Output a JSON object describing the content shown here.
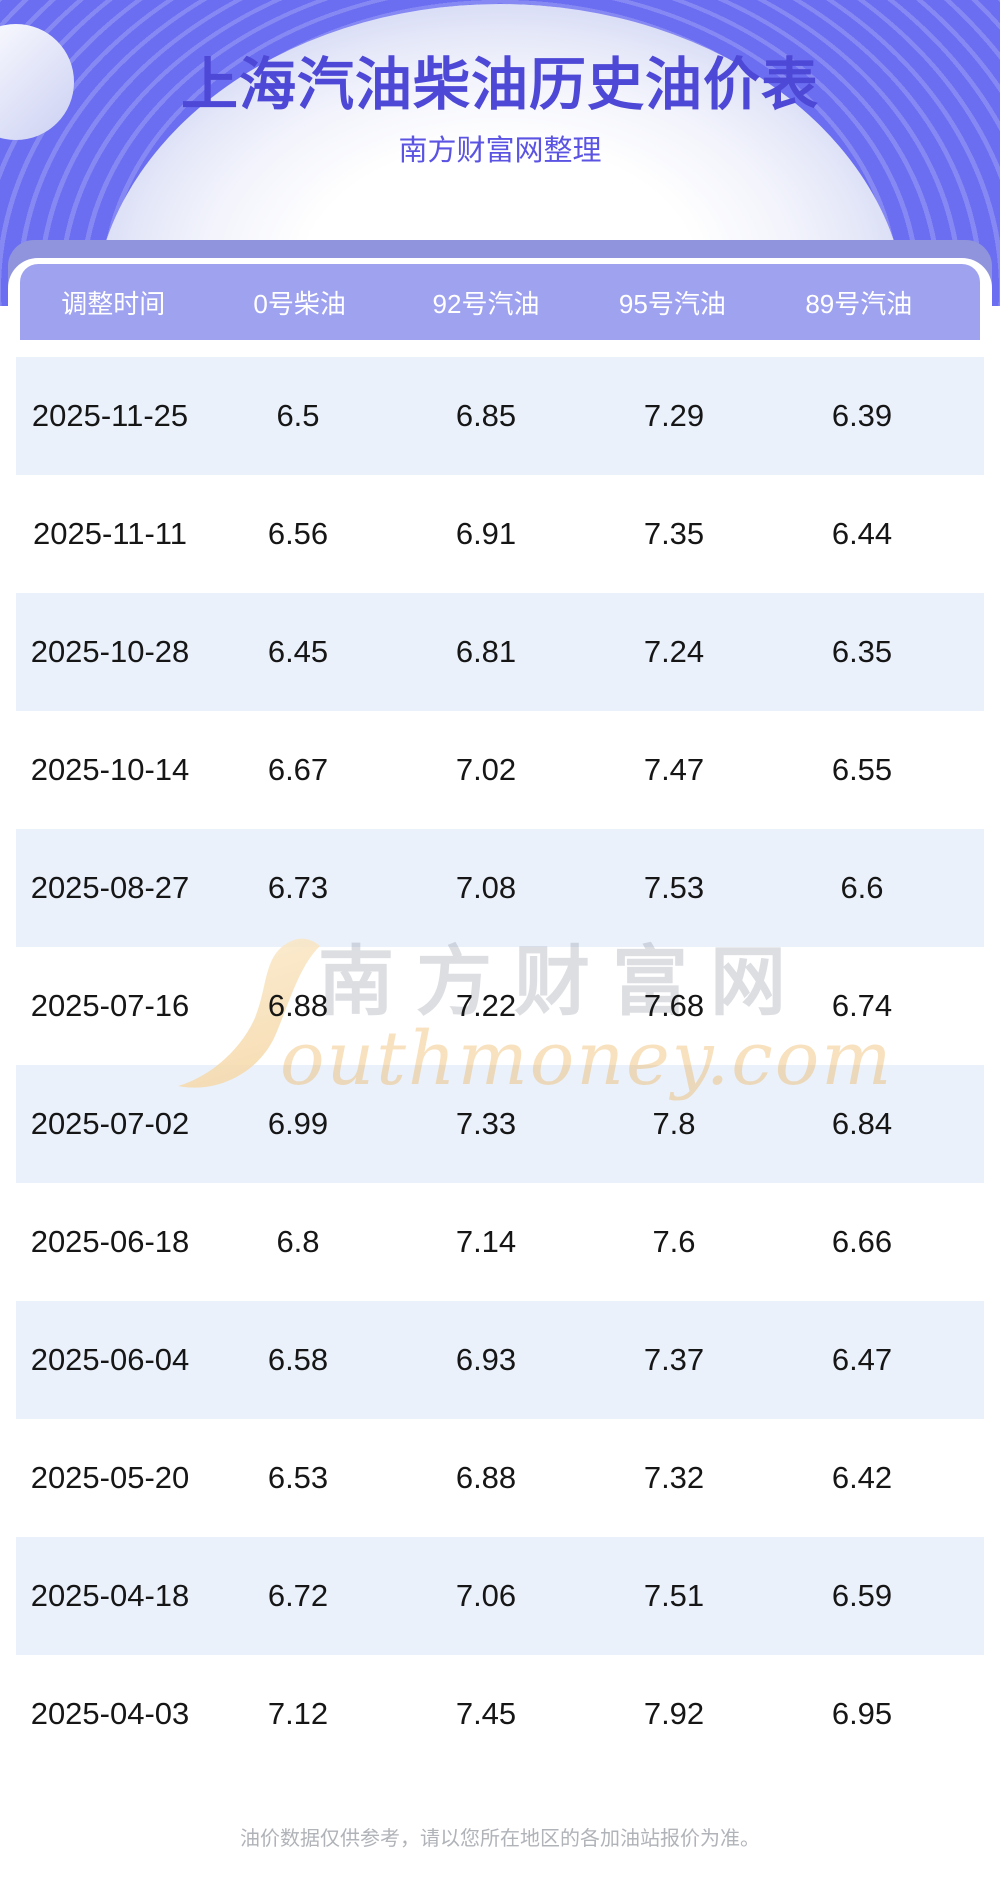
{
  "header": {
    "title": "上海汽油柴油历史油价表",
    "subtitle": "南方财富网整理"
  },
  "table": {
    "columns": [
      "调整时间",
      "0号柴油",
      "92号汽油",
      "95号汽油",
      "89号汽油"
    ],
    "rows": [
      [
        "2025-11-25",
        "6.5",
        "6.85",
        "7.29",
        "6.39"
      ],
      [
        "2025-11-11",
        "6.56",
        "6.91",
        "7.35",
        "6.44"
      ],
      [
        "2025-10-28",
        "6.45",
        "6.81",
        "7.24",
        "6.35"
      ],
      [
        "2025-10-14",
        "6.67",
        "7.02",
        "7.47",
        "6.55"
      ],
      [
        "2025-08-27",
        "6.73",
        "7.08",
        "7.53",
        "6.6"
      ],
      [
        "2025-07-16",
        "6.88",
        "7.22",
        "7.68",
        "6.74"
      ],
      [
        "2025-07-02",
        "6.99",
        "7.33",
        "7.8",
        "6.84"
      ],
      [
        "2025-06-18",
        "6.8",
        "7.14",
        "7.6",
        "6.66"
      ],
      [
        "2025-06-04",
        "6.58",
        "6.93",
        "7.37",
        "6.47"
      ],
      [
        "2025-05-20",
        "6.53",
        "6.88",
        "7.32",
        "6.42"
      ],
      [
        "2025-04-18",
        "6.72",
        "7.06",
        "7.51",
        "6.59"
      ],
      [
        "2025-04-03",
        "7.12",
        "7.45",
        "7.92",
        "6.95"
      ]
    ]
  },
  "chart_data": {
    "type": "table",
    "title": "上海汽油柴油历史油价表",
    "subtitle": "南方财富网整理",
    "columns": [
      "调整时间",
      "0号柴油",
      "92号汽油",
      "95号汽油",
      "89号汽油"
    ],
    "categories": [
      "2025-11-25",
      "2025-11-11",
      "2025-10-28",
      "2025-10-14",
      "2025-08-27",
      "2025-07-16",
      "2025-07-02",
      "2025-06-18",
      "2025-06-04",
      "2025-05-20",
      "2025-04-18",
      "2025-04-03"
    ],
    "series": [
      {
        "name": "0号柴油",
        "values": [
          6.5,
          6.56,
          6.45,
          6.67,
          6.73,
          6.88,
          6.99,
          6.8,
          6.58,
          6.53,
          6.72,
          7.12
        ]
      },
      {
        "name": "92号汽油",
        "values": [
          6.85,
          6.91,
          6.81,
          7.02,
          7.08,
          7.22,
          7.33,
          7.14,
          6.93,
          6.88,
          7.06,
          7.45
        ]
      },
      {
        "name": "95号汽油",
        "values": [
          7.29,
          7.35,
          7.24,
          7.47,
          7.53,
          7.68,
          7.8,
          7.6,
          7.37,
          7.32,
          7.51,
          7.92
        ]
      },
      {
        "name": "89号汽油",
        "values": [
          6.39,
          6.44,
          6.35,
          6.55,
          6.6,
          6.74,
          6.84,
          6.66,
          6.47,
          6.42,
          6.59,
          6.95
        ]
      }
    ]
  },
  "watermark": {
    "cn": "南方财富网",
    "en": "outhmoney.com"
  },
  "footer": {
    "disclaimer": "油价数据仅供参考，请以您所在地区的各加油站报价为准。"
  },
  "colors": {
    "hero_background": "#6b6ef0",
    "title_text": "#4e48d6",
    "subtitle_text": "#5b54e2",
    "outer_band": "#9094dd",
    "table_header_background": "#9fa3ef",
    "table_header_text": "#ffffff",
    "row_alternate_background": "#eaf1fb",
    "row_text": "#161616",
    "footer_text": "#b0b3b8",
    "watermark_orange": "#f6dcab",
    "watermark_gray": "#e2e3e8"
  }
}
